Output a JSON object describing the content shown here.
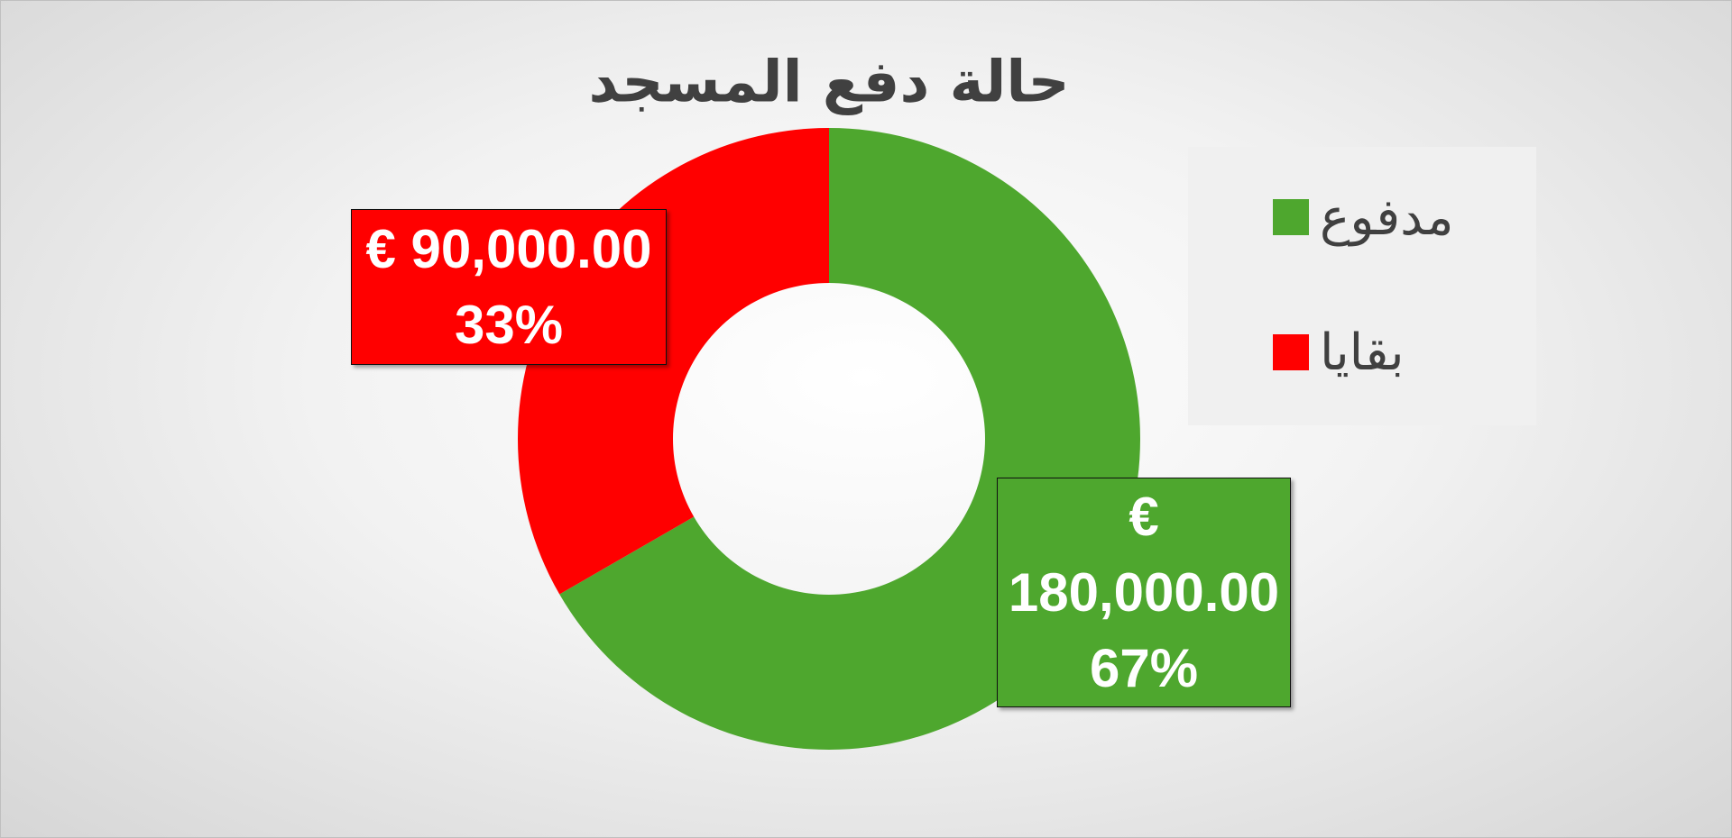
{
  "chart_data": {
    "type": "doughnut",
    "title": "حالة دفع المسجد",
    "categories": [
      "مدفوع",
      "بقايا"
    ],
    "values": [
      180000,
      90000
    ],
    "value_labels": [
      "€ 180,000.00",
      "€ 90,000.00"
    ],
    "percents": [
      67,
      33
    ],
    "percent_labels": [
      "67%",
      "33%"
    ],
    "colors": [
      "#4ea72e",
      "#ff0000"
    ],
    "legend": "right"
  }
}
